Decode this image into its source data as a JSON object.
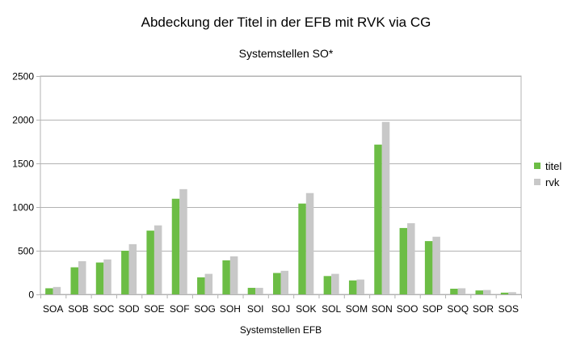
{
  "chart_data": {
    "type": "bar",
    "title": "Abdeckung der Titel in der EFB mit RVK via CG",
    "subtitle": "Systemstellen SO*",
    "xlabel": "Systemstellen EFB",
    "ylabel": "",
    "ylim": [
      0,
      2500
    ],
    "yticks": [
      0,
      500,
      1000,
      1500,
      2000,
      2500
    ],
    "grid": true,
    "legend_position": "right",
    "categories": [
      "SOA",
      "SOB",
      "SOC",
      "SOD",
      "SOE",
      "SOF",
      "SOG",
      "SOH",
      "SOI",
      "SOJ",
      "SOK",
      "SOL",
      "SOM",
      "SON",
      "SOO",
      "SOP",
      "SOQ",
      "SOR",
      "SOS"
    ],
    "series": [
      {
        "name": "titel",
        "color": "#6cbd45",
        "values": [
          70,
          310,
          365,
          500,
          730,
          1095,
          195,
          390,
          75,
          245,
          1040,
          210,
          160,
          1715,
          760,
          610,
          65,
          45,
          20
        ]
      },
      {
        "name": "rvk",
        "color": "#c8c8c8",
        "values": [
          85,
          380,
          400,
          575,
          790,
          1205,
          235,
          435,
          75,
          270,
          1160,
          235,
          170,
          1975,
          815,
          660,
          70,
          50,
          25
        ]
      }
    ]
  }
}
